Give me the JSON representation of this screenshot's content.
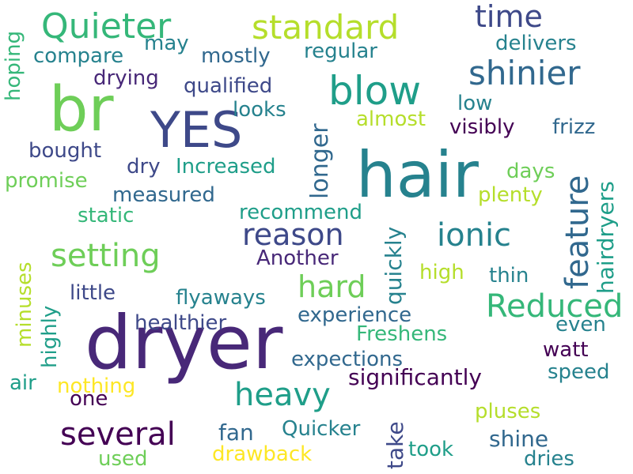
{
  "palette": {
    "dark_purple": "#440154",
    "purple": "#482878",
    "indigo": "#3e4989",
    "slate_blue": "#31688e",
    "teal": "#26828e",
    "sea_green": "#1f9e89",
    "green": "#35b779",
    "light_green": "#6ece58",
    "lime": "#b5de2b",
    "yellow": "#fde725"
  },
  "words": {
    "dryer": "dryer",
    "hair": "hair",
    "br": "br",
    "yes": "YES",
    "blow": "blow",
    "quieter": "Quieter",
    "standard": "standard",
    "time": "time",
    "shinier": "shinier",
    "several": "several",
    "heavy": "heavy",
    "reduced": "Reduced",
    "setting": "setting",
    "reason": "reason",
    "ionic": "ionic",
    "hard": "hard",
    "feature": "feature",
    "hairdryers": "hairdryers",
    "longer": "longer",
    "quickly": "quickly",
    "take": "take",
    "hoping": "hoping",
    "minuses": "minuses",
    "highly": "highly",
    "may": "may",
    "compare": "compare",
    "mostly": "mostly",
    "regular": "regular",
    "delivers": "delivers",
    "drying": "drying",
    "qualified": "qualified",
    "looks": "looks",
    "low": "low",
    "almost": "almost",
    "visibly": "visibly",
    "frizz": "frizz",
    "bought": "bought",
    "dry": "dry",
    "increased": "Increased",
    "days": "days",
    "promise": "promise",
    "measured": "measured",
    "plenty": "plenty",
    "static": "static",
    "recommend": "recommend",
    "another": "Another",
    "high": "high",
    "thin": "thin",
    "little": "little",
    "flyaways": "flyaways",
    "experience": "experience",
    "even": "even",
    "healthier": "healthier",
    "freshens": "Freshens",
    "watt": "watt",
    "expections": "expections",
    "speed": "speed",
    "air": "air",
    "nothing": "nothing",
    "significantly": "significantly",
    "one": "one",
    "pluses": "pluses",
    "fan": "fan",
    "quicker": "Quicker",
    "shine": "shine",
    "used": "used",
    "drawback": "drawback",
    "took": "took",
    "dries": "dries"
  }
}
